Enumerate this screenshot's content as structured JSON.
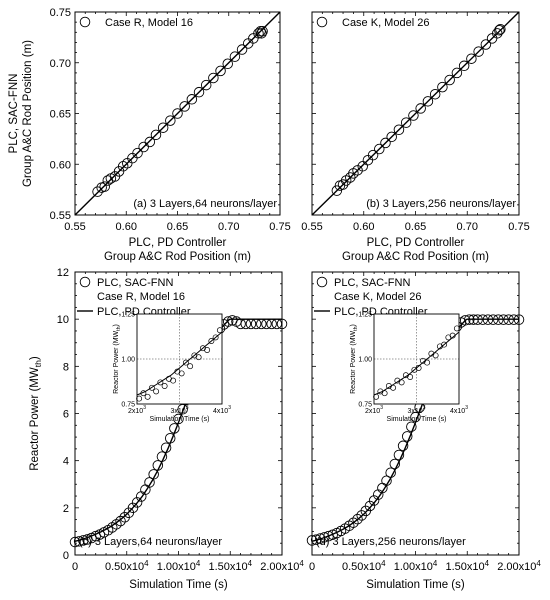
{
  "chart_data": [
    {
      "type": "scatter",
      "panel_label": "(a) 3 Layers,64 neurons/layer",
      "legend_text": "Case R, Model 16",
      "ylabel_lines": [
        "PLC, SAC-FNN",
        "Group A&C Rod Position (m)"
      ],
      "xlabel_lines": [
        "PLC, PD Controller",
        "Group A&C Rod Position (m)"
      ],
      "xlim": [
        0.55,
        0.75
      ],
      "ylim": [
        0.55,
        0.75
      ],
      "xticks": [
        "0.55",
        "0.60",
        "0.65",
        "0.70",
        "0.75"
      ],
      "yticks": [
        "0.55",
        "0.60",
        "0.65",
        "0.70",
        "0.75"
      ],
      "reference_line": [
        [
          0.55,
          0.55
        ],
        [
          0.75,
          0.75
        ]
      ],
      "points": [
        [
          0.572,
          0.573
        ],
        [
          0.576,
          0.577
        ],
        [
          0.579,
          0.578
        ],
        [
          0.582,
          0.584
        ],
        [
          0.585,
          0.586
        ],
        [
          0.589,
          0.588
        ],
        [
          0.593,
          0.593
        ],
        [
          0.597,
          0.598
        ],
        [
          0.601,
          0.601
        ],
        [
          0.606,
          0.606
        ],
        [
          0.611,
          0.611
        ],
        [
          0.617,
          0.617
        ],
        [
          0.623,
          0.622
        ],
        [
          0.629,
          0.629
        ],
        [
          0.636,
          0.636
        ],
        [
          0.643,
          0.643
        ],
        [
          0.65,
          0.65
        ],
        [
          0.657,
          0.657
        ],
        [
          0.664,
          0.664
        ],
        [
          0.671,
          0.671
        ],
        [
          0.678,
          0.678
        ],
        [
          0.685,
          0.685
        ],
        [
          0.692,
          0.692
        ],
        [
          0.699,
          0.699
        ],
        [
          0.706,
          0.706
        ],
        [
          0.713,
          0.713
        ],
        [
          0.719,
          0.719
        ],
        [
          0.724,
          0.724
        ],
        [
          0.729,
          0.729
        ],
        [
          0.731,
          0.731
        ],
        [
          0.732,
          0.729
        ],
        [
          0.733,
          0.731
        ]
      ]
    },
    {
      "type": "scatter",
      "panel_label": "(b) 3 Layers,256 neurons/layer",
      "legend_text": "Case K, Model 26",
      "xlabel_lines": [
        "PLC, PD Controller",
        "Group A&C Rod Position (m)"
      ],
      "xlim": [
        0.55,
        0.75
      ],
      "ylim": [
        0.55,
        0.75
      ],
      "xticks": [
        "0.55",
        "0.60",
        "0.65",
        "0.70",
        "0.75"
      ],
      "reference_line": [
        [
          0.55,
          0.55
        ],
        [
          0.75,
          0.75
        ]
      ],
      "points": [
        [
          0.574,
          0.574
        ],
        [
          0.577,
          0.579
        ],
        [
          0.58,
          0.58
        ],
        [
          0.583,
          0.584
        ],
        [
          0.587,
          0.587
        ],
        [
          0.59,
          0.591
        ],
        [
          0.594,
          0.594
        ],
        [
          0.599,
          0.598
        ],
        [
          0.604,
          0.604
        ],
        [
          0.609,
          0.609
        ],
        [
          0.615,
          0.615
        ],
        [
          0.621,
          0.621
        ],
        [
          0.627,
          0.627
        ],
        [
          0.634,
          0.634
        ],
        [
          0.641,
          0.641
        ],
        [
          0.648,
          0.648
        ],
        [
          0.655,
          0.655
        ],
        [
          0.662,
          0.662
        ],
        [
          0.669,
          0.669
        ],
        [
          0.676,
          0.676
        ],
        [
          0.683,
          0.683
        ],
        [
          0.69,
          0.69
        ],
        [
          0.697,
          0.697
        ],
        [
          0.704,
          0.704
        ],
        [
          0.711,
          0.711
        ],
        [
          0.718,
          0.718
        ],
        [
          0.724,
          0.724
        ],
        [
          0.729,
          0.729
        ],
        [
          0.731,
          0.732
        ],
        [
          0.732,
          0.733
        ]
      ]
    },
    {
      "type": "line",
      "panel_label": "(c) 3 Layers,64 neurons/layer",
      "legend": {
        "marker_label": "PLC, SAC-FNN",
        "marker_sublines": [
          "Case R, Model 16"
        ],
        "line_label": "PLC, PD Controller"
      },
      "ylabel": "Reactor Power (MW",
      "ylabel_sub": "th",
      "xlabel": "Simulation Time (s)",
      "xlim": [
        0,
        20000
      ],
      "ylim": [
        0,
        12
      ],
      "xticks": [
        "0",
        "0.50x10",
        "1.00x10",
        "1.50x10",
        "2.00x10"
      ],
      "xtick_exp": "4",
      "yticks": [
        "0",
        "2",
        "4",
        "6",
        "8",
        "10",
        "12"
      ],
      "series": [
        {
          "type": "line",
          "x": [
            0,
            500,
            1000,
            1500,
            2000,
            2500,
            3000,
            3500,
            4000,
            4500,
            5000,
            5500,
            6000,
            6500,
            7000,
            7500,
            8000,
            8500,
            9000,
            9500,
            10000,
            10500,
            11000,
            11500,
            12000,
            12500,
            13000,
            13500,
            14000,
            14500,
            14900,
            15000,
            20000
          ],
          "y": [
            0.58,
            0.64,
            0.71,
            0.79,
            0.88,
            0.98,
            1.09,
            1.22,
            1.37,
            1.54,
            1.73,
            1.96,
            2.21,
            2.49,
            2.82,
            3.18,
            3.59,
            4.04,
            4.53,
            5.06,
            5.62,
            6.2,
            6.79,
            7.37,
            7.92,
            8.42,
            8.86,
            9.24,
            9.55,
            9.8,
            9.98,
            10.0,
            10.0
          ]
        },
        {
          "type": "scatter",
          "x": [
            0,
            400,
            800,
            1200,
            1600,
            2000,
            2400,
            2800,
            3200,
            3600,
            4000,
            4400,
            4800,
            5200,
            5600,
            6000,
            6400,
            6800,
            7200,
            7600,
            8000,
            8400,
            8800,
            9200,
            9600,
            10000,
            10400,
            10800,
            11200,
            11600,
            12000,
            12400,
            12800,
            13200,
            13600,
            14000,
            14400,
            14800,
            15200,
            15600,
            16000,
            16500,
            17000,
            17500,
            18000,
            18500,
            19000,
            19500,
            20000
          ],
          "y": [
            0.55,
            0.58,
            0.62,
            0.66,
            0.72,
            0.8,
            0.87,
            0.96,
            1.05,
            1.17,
            1.3,
            1.44,
            1.6,
            1.79,
            2.0,
            2.23,
            2.48,
            2.77,
            3.08,
            3.42,
            3.8,
            4.17,
            4.55,
            4.95,
            5.37,
            5.77,
            6.18,
            6.58,
            6.98,
            7.38,
            7.8,
            8.2,
            8.6,
            8.98,
            9.33,
            9.6,
            9.78,
            9.9,
            9.95,
            9.9,
            9.8,
            9.8,
            9.8,
            9.8,
            9.8,
            9.8,
            9.8,
            9.8,
            9.8
          ]
        }
      ],
      "inset": {
        "ylabel": "Reactor Power (MW",
        "ylabel_sub": "th",
        "xlabel": "Simulation Time (s)",
        "xlim": [
          2000,
          4000
        ],
        "ylim": [
          0.75,
          1.25
        ],
        "xticks": [
          "2x10",
          "3x10",
          "4x10"
        ],
        "xtick_exp": "3",
        "yticks": [
          "0.75",
          "1.00",
          "1.25"
        ],
        "line": {
          "x": [
            2000,
            2200,
            2400,
            2600,
            2800,
            3000,
            3200,
            3400,
            3600,
            3800,
            4000
          ],
          "y": [
            0.8,
            0.82,
            0.85,
            0.88,
            0.91,
            0.95,
            0.99,
            1.03,
            1.07,
            1.11,
            1.15
          ]
        },
        "points": {
          "x": [
            2050,
            2150,
            2250,
            2350,
            2450,
            2550,
            2650,
            2750,
            2850,
            2950,
            3050,
            3150,
            3250,
            3350,
            3450,
            3550,
            3650,
            3750,
            3850,
            3950
          ],
          "y": [
            0.78,
            0.81,
            0.79,
            0.84,
            0.82,
            0.87,
            0.85,
            0.89,
            0.88,
            0.93,
            0.92,
            0.98,
            0.96,
            1.02,
            1.01,
            1.06,
            1.05,
            1.1,
            1.12,
            1.16
          ]
        }
      }
    },
    {
      "type": "line",
      "panel_label": "(d) 3 Layers,256 neurons/layer",
      "legend": {
        "marker_label": "PLC, SAC-FNN",
        "marker_sublines": [
          "Case K, Model 26"
        ],
        "line_label": "PLC, PD Controller"
      },
      "xlabel": "Simulation Time (s)",
      "xlim": [
        0,
        20000
      ],
      "ylim": [
        0,
        12
      ],
      "xticks": [
        "0",
        "0.50x10",
        "1.00x10",
        "1.50x10",
        "2.00x10"
      ],
      "xtick_exp": "4",
      "series": [
        {
          "type": "line",
          "x": [
            0,
            500,
            1000,
            1500,
            2000,
            2500,
            3000,
            3500,
            4000,
            4500,
            5000,
            5500,
            6000,
            6500,
            7000,
            7500,
            8000,
            8500,
            9000,
            9500,
            10000,
            10500,
            11000,
            11500,
            12000,
            12500,
            13000,
            13500,
            14000,
            14500,
            14900,
            15000,
            20000
          ],
          "y": [
            0.58,
            0.64,
            0.71,
            0.79,
            0.88,
            0.98,
            1.09,
            1.22,
            1.37,
            1.54,
            1.73,
            1.96,
            2.21,
            2.49,
            2.82,
            3.18,
            3.59,
            4.04,
            4.53,
            5.06,
            5.62,
            6.2,
            6.79,
            7.37,
            7.92,
            8.42,
            8.86,
            9.24,
            9.55,
            9.8,
            9.98,
            10.0,
            10.0
          ]
        },
        {
          "type": "scatter",
          "x": [
            0,
            400,
            800,
            1200,
            1600,
            2000,
            2400,
            2800,
            3200,
            3600,
            4000,
            4400,
            4800,
            5200,
            5600,
            6000,
            6400,
            6800,
            7200,
            7600,
            8000,
            8400,
            8800,
            9200,
            9600,
            10000,
            10400,
            10800,
            11200,
            11600,
            12000,
            12400,
            12800,
            13200,
            13600,
            14000,
            14400,
            14800,
            15200,
            15600,
            16000,
            16500,
            17000,
            17500,
            18000,
            18500,
            19000,
            19500,
            20000
          ],
          "y": [
            0.62,
            0.65,
            0.7,
            0.75,
            0.8,
            0.86,
            0.93,
            1.02,
            1.12,
            1.24,
            1.37,
            1.52,
            1.68,
            1.87,
            2.08,
            2.31,
            2.56,
            2.84,
            3.15,
            3.49,
            3.86,
            4.24,
            4.63,
            5.03,
            5.44,
            5.85,
            6.26,
            6.67,
            7.08,
            7.49,
            7.9,
            8.31,
            8.71,
            9.08,
            9.42,
            9.69,
            9.86,
            9.95,
            9.98,
            9.98,
            9.98,
            9.98,
            9.98,
            9.98,
            9.98,
            9.98,
            9.98,
            9.98,
            9.98
          ]
        }
      ],
      "inset": {
        "ylabel": "Reactor Power (MW",
        "ylabel_sub": "th",
        "xlabel": "Simulation Time (s)",
        "xlim": [
          2000,
          4000
        ],
        "ylim": [
          0.75,
          1.25
        ],
        "xticks": [
          "2x10",
          "3x10",
          "4x10"
        ],
        "xtick_exp": "3",
        "yticks": [
          "0.75",
          "1.00",
          "1.25"
        ],
        "line": {
          "x": [
            2000,
            2200,
            2400,
            2600,
            2800,
            3000,
            3200,
            3400,
            3600,
            3800,
            4000
          ],
          "y": [
            0.8,
            0.82,
            0.85,
            0.88,
            0.91,
            0.95,
            0.99,
            1.03,
            1.07,
            1.11,
            1.15
          ]
        },
        "points": {
          "x": [
            2050,
            2150,
            2250,
            2350,
            2450,
            2550,
            2650,
            2750,
            2850,
            2950,
            3050,
            3150,
            3250,
            3350,
            3450,
            3550,
            3650,
            3750,
            3850,
            3950
          ],
          "y": [
            0.79,
            0.82,
            0.81,
            0.85,
            0.84,
            0.88,
            0.87,
            0.91,
            0.9,
            0.94,
            0.95,
            0.99,
            0.98,
            1.03,
            1.02,
            1.07,
            1.08,
            1.12,
            1.13,
            1.17
          ]
        }
      }
    }
  ]
}
